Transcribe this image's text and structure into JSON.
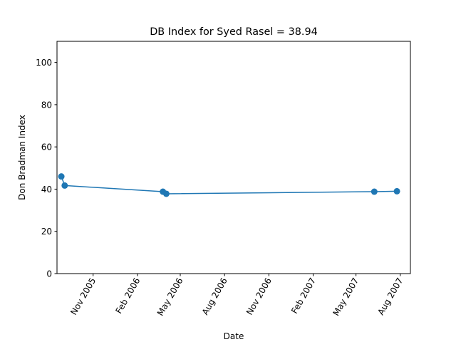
{
  "chart_data": {
    "type": "line",
    "title": "DB Index for Syed Rasel = 38.94",
    "xlabel": "Date",
    "ylabel": "Don Bradman Index",
    "x_type": "date",
    "xlim": [
      "2005-08-18",
      "2007-08-22"
    ],
    "ylim": [
      0,
      110
    ],
    "x_ticks": [
      {
        "date": "2005-11-01",
        "label": "Nov 2005"
      },
      {
        "date": "2006-02-01",
        "label": "Feb 2006"
      },
      {
        "date": "2006-05-01",
        "label": "May 2006"
      },
      {
        "date": "2006-08-01",
        "label": "Aug 2006"
      },
      {
        "date": "2006-11-01",
        "label": "Nov 2006"
      },
      {
        "date": "2007-02-01",
        "label": "Feb 2007"
      },
      {
        "date": "2007-05-01",
        "label": "May 2007"
      },
      {
        "date": "2007-08-01",
        "label": "Aug 2007"
      }
    ],
    "y_ticks": [
      0,
      20,
      40,
      60,
      80,
      100
    ],
    "grid": false,
    "series": [
      {
        "color": "#1f77b4",
        "marker": "circle",
        "points": [
          {
            "x": "2005-08-27",
            "y": 46.0
          },
          {
            "x": "2005-09-03",
            "y": 41.7
          },
          {
            "x": "2006-03-26",
            "y": 38.8
          },
          {
            "x": "2006-04-02",
            "y": 37.8
          },
          {
            "x": "2007-06-08",
            "y": 38.8
          },
          {
            "x": "2007-07-25",
            "y": 39.0
          }
        ]
      }
    ]
  }
}
